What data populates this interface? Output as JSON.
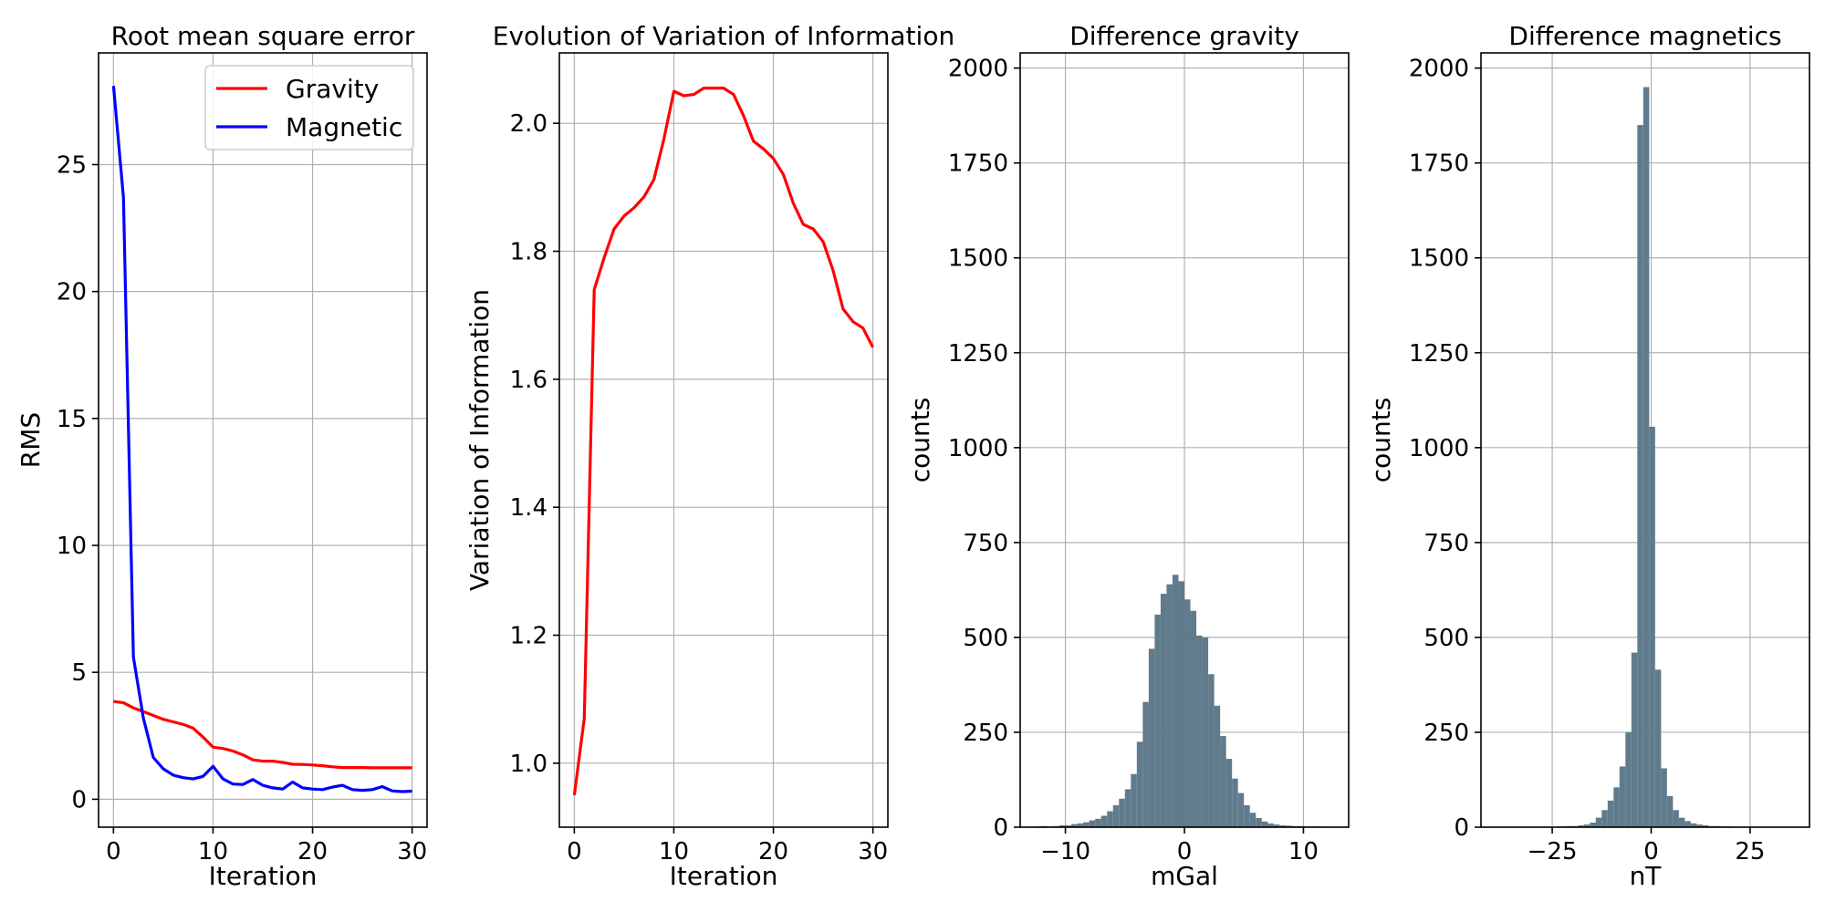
{
  "chart_data": [
    {
      "type": "line",
      "title": "Root mean square error",
      "xlabel": "Iteration",
      "ylabel": "RMS",
      "xlim": [
        -1.5,
        31.5
      ],
      "ylim": [
        -1.1,
        29.4
      ],
      "xticks": [
        0,
        10,
        20,
        30
      ],
      "yticks": [
        0,
        5,
        10,
        15,
        20,
        25
      ],
      "grid": true,
      "legend_position": "top-right",
      "x": [
        0,
        1,
        2,
        3,
        4,
        5,
        6,
        7,
        8,
        9,
        10,
        11,
        12,
        13,
        14,
        15,
        16,
        17,
        18,
        19,
        20,
        21,
        22,
        23,
        24,
        25,
        26,
        27,
        28,
        29,
        30
      ],
      "series": [
        {
          "name": "Gravity",
          "color": "#ff0000",
          "values": [
            3.85,
            3.8,
            3.6,
            3.45,
            3.3,
            3.15,
            3.05,
            2.95,
            2.8,
            2.45,
            2.05,
            2.0,
            1.9,
            1.75,
            1.55,
            1.5,
            1.5,
            1.45,
            1.38,
            1.37,
            1.35,
            1.32,
            1.28,
            1.25,
            1.25,
            1.25,
            1.24,
            1.24,
            1.24,
            1.24,
            1.24
          ]
        },
        {
          "name": "Magnetic",
          "color": "#0000ff",
          "values": [
            28.1,
            23.7,
            5.6,
            3.2,
            1.65,
            1.2,
            0.95,
            0.85,
            0.8,
            0.9,
            1.3,
            0.8,
            0.6,
            0.58,
            0.78,
            0.55,
            0.45,
            0.4,
            0.68,
            0.45,
            0.4,
            0.38,
            0.48,
            0.55,
            0.38,
            0.35,
            0.38,
            0.5,
            0.33,
            0.3,
            0.32
          ]
        }
      ]
    },
    {
      "type": "line",
      "title": "Evolution of Variation of Information",
      "xlabel": "Iteration",
      "ylabel": "Variation of Information",
      "xlim": [
        -1.5,
        31.5
      ],
      "ylim": [
        0.9,
        2.11
      ],
      "xticks": [
        0,
        10,
        20,
        30
      ],
      "yticks": [
        1.0,
        1.2,
        1.4,
        1.6,
        1.8,
        2.0
      ],
      "ytick_labels": [
        "1.0",
        "1.2",
        "1.4",
        "1.6",
        "1.8",
        "2.0"
      ],
      "grid": true,
      "x": [
        0,
        1,
        2,
        3,
        4,
        5,
        6,
        7,
        8,
        9,
        10,
        11,
        12,
        13,
        14,
        15,
        16,
        17,
        18,
        19,
        20,
        21,
        22,
        23,
        24,
        25,
        26,
        27,
        28,
        29,
        30
      ],
      "series": [
        {
          "color": "#ff0000",
          "values": [
            0.95,
            1.07,
            1.74,
            1.79,
            1.835,
            1.855,
            1.868,
            1.885,
            1.912,
            1.975,
            2.05,
            2.043,
            2.045,
            2.055,
            2.055,
            2.055,
            2.045,
            2.012,
            1.972,
            1.96,
            1.945,
            1.92,
            1.875,
            1.842,
            1.835,
            1.815,
            1.77,
            1.71,
            1.69,
            1.68,
            1.65
          ]
        }
      ]
    },
    {
      "type": "bar",
      "subtype": "histogram",
      "title": "Difference gravity",
      "xlabel": "mGal",
      "ylabel": "counts",
      "xlim": [
        -13.8,
        13.8
      ],
      "ylim": [
        0,
        2040
      ],
      "xticks": [
        -10,
        0,
        10
      ],
      "xtick_labels": [
        "−10",
        "0",
        "10"
      ],
      "yticks": [
        0,
        250,
        500,
        750,
        1000,
        1250,
        1500,
        1750,
        2000
      ],
      "grid": true,
      "bar_color": "#607b8b",
      "bin_start": -12.5,
      "bin_width": 0.5,
      "counts": [
        2,
        3,
        2,
        3,
        5,
        5,
        8,
        10,
        13,
        18,
        22,
        30,
        42,
        58,
        75,
        100,
        140,
        225,
        330,
        470,
        560,
        615,
        640,
        665,
        648,
        600,
        570,
        505,
        500,
        403,
        320,
        240,
        180,
        128,
        90,
        58,
        38,
        24,
        15,
        10,
        7,
        5,
        4,
        3,
        3,
        2,
        2,
        2,
        1,
        1
      ]
    },
    {
      "type": "bar",
      "subtype": "histogram",
      "title": "Difference magnetics",
      "xlabel": "nT",
      "ylabel": "counts",
      "xlim": [
        -43,
        40
      ],
      "ylim": [
        0,
        2040
      ],
      "xticks": [
        -25,
        0,
        25
      ],
      "xtick_labels": [
        "−25",
        "0",
        "25"
      ],
      "yticks": [
        0,
        250,
        500,
        750,
        1000,
        1250,
        1500,
        1750,
        2000
      ],
      "grid": true,
      "bar_color": "#607b8b",
      "bin_start": -26.0,
      "bin_width": 1.5,
      "counts": [
        1,
        1,
        2,
        3,
        3,
        5,
        7,
        12,
        25,
        45,
        70,
        105,
        160,
        250,
        460,
        1850,
        1950,
        1055,
        415,
        155,
        82,
        45,
        25,
        16,
        10,
        7,
        5,
        3,
        3,
        2,
        2,
        1,
        1,
        1,
        1
      ]
    }
  ]
}
